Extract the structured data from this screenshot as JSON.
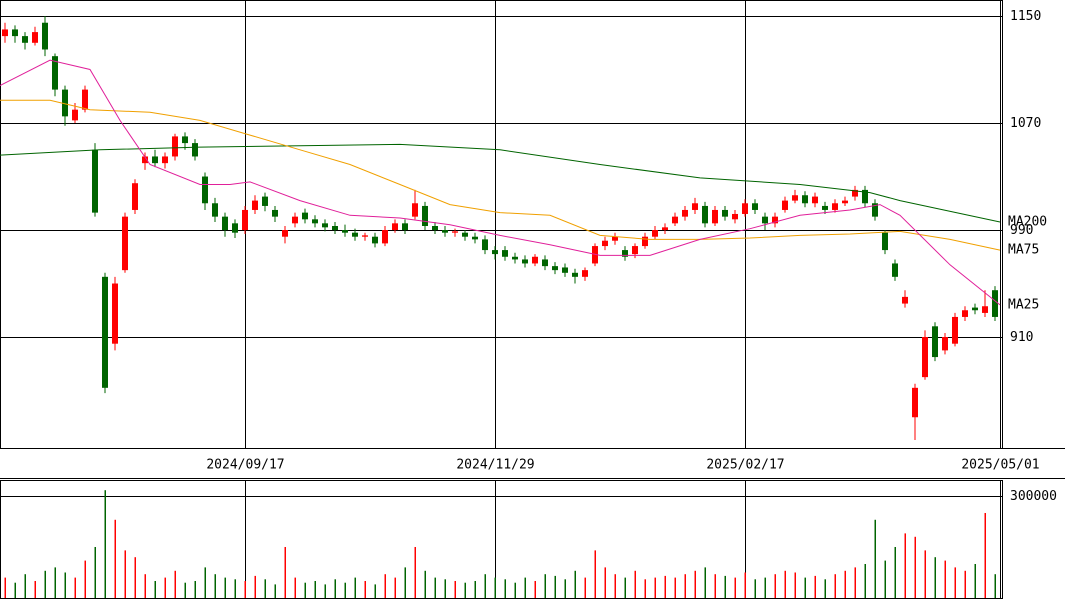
{
  "chart_data": {
    "type": "candlestick",
    "up_color": "#ff0000",
    "down_color": "#006400",
    "xlim": [
      -0.5,
      99.5
    ],
    "xticks": [
      {
        "value": 24,
        "label": "2024/09/17"
      },
      {
        "value": 49,
        "label": "2024/11/29"
      },
      {
        "value": 74,
        "label": "2025/02/17"
      },
      {
        "value": 99.5,
        "label": "2025/05/01"
      }
    ],
    "ylim": [
      827,
      1162
    ],
    "yticks": [
      910,
      990,
      1070,
      1150
    ],
    "grid": true,
    "candles": [
      [
        1135,
        1145,
        1130,
        1140
      ],
      [
        1140,
        1143,
        1130,
        1135
      ],
      [
        1135,
        1138,
        1125,
        1130
      ],
      [
        1130,
        1142,
        1128,
        1138
      ],
      [
        1145,
        1150,
        1120,
        1125
      ],
      [
        1120,
        1122,
        1090,
        1095
      ],
      [
        1095,
        1098,
        1068,
        1075
      ],
      [
        1072,
        1085,
        1070,
        1080
      ],
      [
        1080,
        1098,
        1078,
        1095
      ],
      [
        1050,
        1055,
        1000,
        1003
      ],
      [
        955,
        958,
        868,
        872
      ],
      [
        905,
        955,
        900,
        950
      ],
      [
        960,
        1003,
        958,
        1000
      ],
      [
        1005,
        1028,
        1002,
        1025
      ],
      [
        1040,
        1048,
        1035,
        1045
      ],
      [
        1045,
        1050,
        1037,
        1040
      ],
      [
        1040,
        1048,
        1036,
        1045
      ],
      [
        1045,
        1062,
        1042,
        1060
      ],
      [
        1060,
        1063,
        1050,
        1055
      ],
      [
        1055,
        1058,
        1042,
        1045
      ],
      [
        1030,
        1033,
        1005,
        1010
      ],
      [
        1010,
        1014,
        996,
        1000
      ],
      [
        1000,
        1003,
        985,
        990
      ],
      [
        995,
        998,
        984,
        988
      ],
      [
        990,
        1008,
        987,
        1005
      ],
      [
        1005,
        1016,
        1002,
        1012
      ],
      [
        1015,
        1018,
        1004,
        1008
      ],
      [
        1005,
        1008,
        996,
        1000
      ],
      [
        985,
        993,
        980,
        990
      ],
      [
        995,
        1003,
        992,
        1000
      ],
      [
        1003,
        1006,
        995,
        998
      ],
      [
        998,
        1001,
        992,
        995
      ],
      [
        995,
        998,
        989,
        992
      ],
      [
        993,
        996,
        987,
        990
      ],
      [
        990,
        994,
        985,
        988
      ],
      [
        988,
        991,
        982,
        985
      ],
      [
        985,
        988,
        982,
        986
      ],
      [
        985,
        988,
        977,
        980
      ],
      [
        980,
        993,
        978,
        990
      ],
      [
        990,
        998,
        988,
        995
      ],
      [
        995,
        998,
        987,
        990
      ],
      [
        1000,
        1020,
        998,
        1010
      ],
      [
        1008,
        1011,
        990,
        993
      ],
      [
        993,
        996,
        987,
        990
      ],
      [
        990,
        993,
        985,
        988
      ],
      [
        988,
        991,
        985,
        989
      ],
      [
        988,
        990,
        982,
        985
      ],
      [
        985,
        988,
        980,
        983
      ],
      [
        983,
        986,
        972,
        975
      ],
      [
        975,
        978,
        968,
        972
      ],
      [
        975,
        978,
        967,
        970
      ],
      [
        970,
        973,
        965,
        968
      ],
      [
        968,
        971,
        962,
        965
      ],
      [
        965,
        972,
        963,
        970
      ],
      [
        968,
        971,
        960,
        963
      ],
      [
        963,
        966,
        957,
        960
      ],
      [
        962,
        965,
        955,
        958
      ],
      [
        958,
        961,
        950,
        955
      ],
      [
        955,
        962,
        952,
        960
      ],
      [
        965,
        980,
        963,
        978
      ],
      [
        978,
        985,
        975,
        982
      ],
      [
        982,
        988,
        979,
        985
      ],
      [
        975,
        978,
        967,
        970
      ],
      [
        972,
        980,
        969,
        978
      ],
      [
        978,
        988,
        976,
        985
      ],
      [
        985,
        993,
        983,
        990
      ],
      [
        990,
        995,
        987,
        992
      ],
      [
        995,
        1003,
        993,
        1000
      ],
      [
        1000,
        1008,
        997,
        1005
      ],
      [
        1005,
        1014,
        1002,
        1010
      ],
      [
        1008,
        1011,
        992,
        995
      ],
      [
        995,
        1008,
        993,
        1005
      ],
      [
        1005,
        1008,
        997,
        1000
      ],
      [
        998,
        1005,
        995,
        1002
      ],
      [
        1002,
        1013,
        1000,
        1010
      ],
      [
        1010,
        1013,
        1002,
        1005
      ],
      [
        1000,
        1003,
        990,
        995
      ],
      [
        995,
        1003,
        992,
        1000
      ],
      [
        1005,
        1015,
        1003,
        1012
      ],
      [
        1012,
        1020,
        1010,
        1016
      ],
      [
        1016,
        1019,
        1007,
        1010
      ],
      [
        1010,
        1018,
        1007,
        1015
      ],
      [
        1008,
        1011,
        1002,
        1005
      ],
      [
        1005,
        1013,
        1003,
        1010
      ],
      [
        1010,
        1015,
        1008,
        1012
      ],
      [
        1015,
        1023,
        1012,
        1020
      ],
      [
        1020,
        1023,
        1007,
        1010
      ],
      [
        1010,
        1013,
        997,
        1000
      ],
      [
        988,
        990,
        972,
        975
      ],
      [
        965,
        968,
        952,
        955
      ],
      [
        935,
        945,
        932,
        940
      ],
      [
        850,
        875,
        833,
        872
      ],
      [
        880,
        915,
        878,
        910
      ],
      [
        918,
        921,
        892,
        895
      ],
      [
        900,
        913,
        897,
        910
      ],
      [
        905,
        928,
        903,
        925
      ],
      [
        925,
        933,
        922,
        930
      ],
      [
        932,
        935,
        927,
        930
      ],
      [
        928,
        945,
        925,
        933
      ],
      [
        945,
        948,
        922,
        925
      ]
    ],
    "series": [
      {
        "name": "MA200",
        "color": "#006400",
        "x": [
          -0.5,
          9.5,
          19.5,
          29.5,
          39.5,
          49.5,
          59.5,
          69.5,
          79.5,
          86.5,
          89.5,
          99.5
        ],
        "values": [
          1046,
          1050,
          1052,
          1053,
          1054,
          1050,
          1039,
          1029,
          1024,
          1018,
          1012,
          996
        ]
      },
      {
        "name": "MA75",
        "color": "#f0a000",
        "x": [
          -0.5,
          4.5,
          8.5,
          14.5,
          19.5,
          24.5,
          29.5,
          34.5,
          39.5,
          44.5,
          49.5,
          54.5,
          59.5,
          64.5,
          69.5,
          74.5,
          79.5,
          84.5,
          89.5,
          94.5,
          99.5
        ],
        "values": [
          1087,
          1087,
          1080,
          1078,
          1072,
          1061,
          1050,
          1039,
          1024,
          1009,
          1003,
          1001,
          986,
          983,
          983,
          984,
          986,
          987,
          989,
          983,
          975
        ]
      },
      {
        "name": "MA25",
        "color": "#e0209a",
        "x": [
          -0.5,
          4.5,
          8.5,
          11.5,
          14.5,
          19.5,
          22.5,
          24.5,
          29.5,
          34.5,
          39.5,
          44.5,
          49.5,
          54.5,
          59.5,
          64.5,
          69.5,
          74.5,
          79.5,
          84.5,
          87.5,
          89.5,
          94.5,
          99.5
        ],
        "values": [
          1098,
          1117,
          1110,
          1072,
          1039,
          1024,
          1024,
          1026,
          1012,
          1001,
          999,
          994,
          986,
          979,
          971,
          971,
          983,
          991,
          1001,
          1005,
          1009,
          1001,
          964,
          934
        ]
      }
    ],
    "volume": {
      "ylim": [
        0,
        347000
      ],
      "yticks": [
        300000
      ],
      "values": [
        60000,
        45000,
        70000,
        50000,
        80000,
        90000,
        75000,
        60000,
        110000,
        150000,
        317000,
        230000,
        140000,
        120000,
        70000,
        50000,
        60000,
        80000,
        45000,
        50000,
        90000,
        70000,
        60000,
        55000,
        50000,
        65000,
        55000,
        40000,
        150000,
        60000,
        45000,
        50000,
        40000,
        55000,
        45000,
        60000,
        50000,
        40000,
        70000,
        60000,
        90000,
        150000,
        80000,
        60000,
        55000,
        50000,
        45000,
        50000,
        70000,
        60000,
        55000,
        45000,
        60000,
        50000,
        70000,
        65000,
        55000,
        80000,
        60000,
        140000,
        90000,
        70000,
        60000,
        80000,
        55000,
        60000,
        65000,
        60000,
        70000,
        80000,
        90000,
        70000,
        65000,
        60000,
        75000,
        55000,
        60000,
        70000,
        80000,
        75000,
        60000,
        65000,
        55000,
        70000,
        80000,
        90000,
        100000,
        230000,
        110000,
        150000,
        190000,
        180000,
        140000,
        120000,
        110000,
        90000,
        80000,
        100000,
        250000,
        70000
      ]
    }
  }
}
